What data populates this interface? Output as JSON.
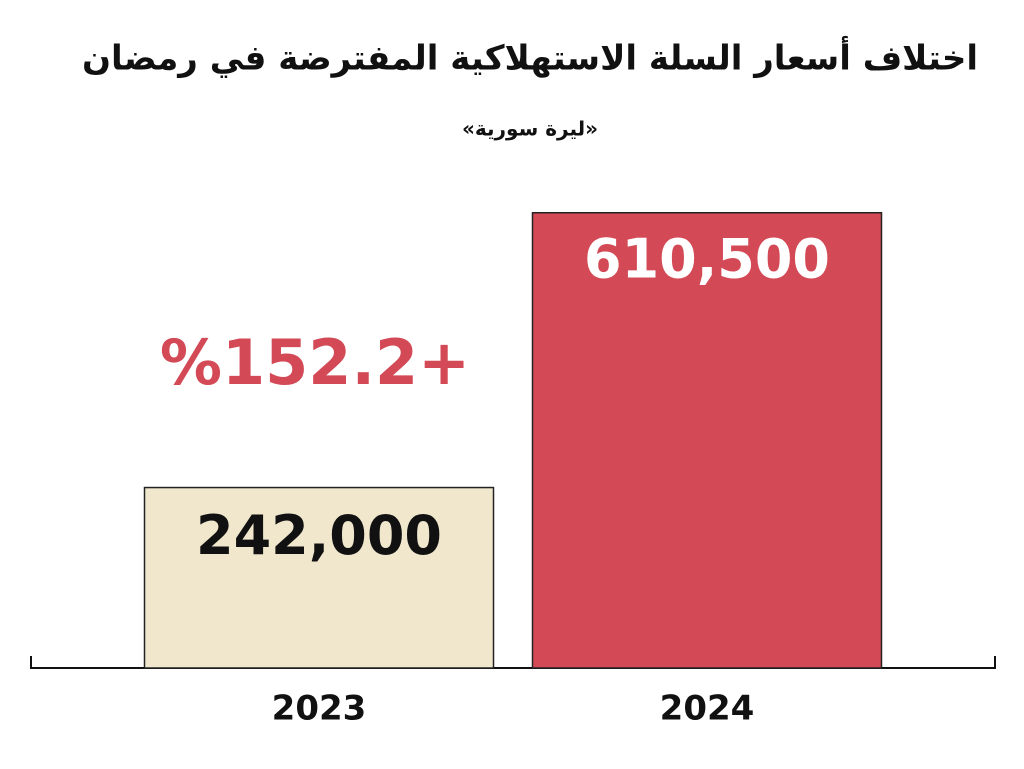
{
  "chart_data": {
    "type": "bar",
    "title": "اختلاف أسعار السلة الاستهلاكية المفترضة في رمضان",
    "subtitle": "«ليرة سورية»",
    "annotation": "%152.2+",
    "categories": [
      "2023",
      "2024"
    ],
    "values": [
      242000,
      610500
    ],
    "value_labels": [
      "242,000",
      "610,500"
    ],
    "colors": [
      "#f0e7cd",
      "#d34a56"
    ],
    "annotation_color": "#d34a56",
    "ylim": [
      0,
      700000
    ],
    "grid": false
  }
}
